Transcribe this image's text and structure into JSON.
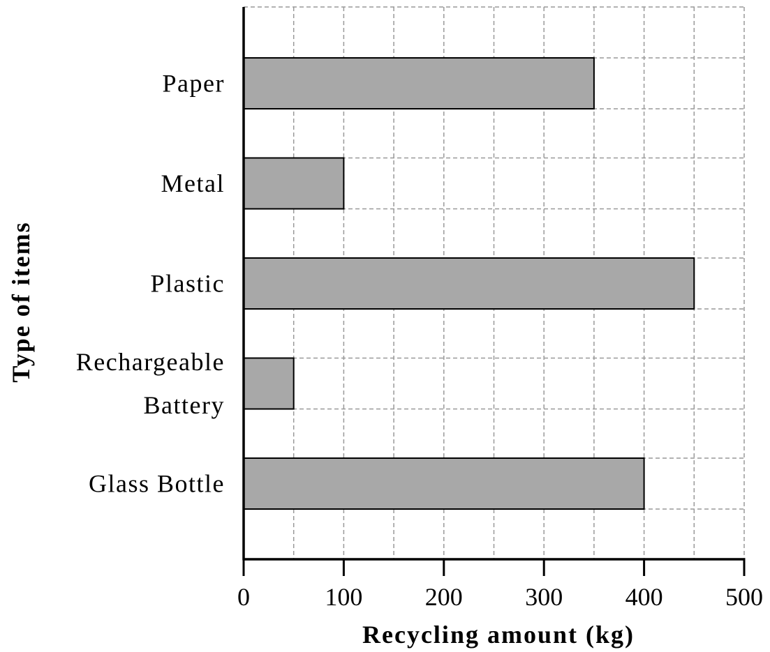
{
  "chart_data": {
    "type": "bar",
    "orientation": "horizontal",
    "categories": [
      [
        "Paper"
      ],
      [
        "Metal"
      ],
      [
        "Plastic"
      ],
      [
        "Rechargeable",
        "Battery"
      ],
      [
        "Glass Bottle"
      ]
    ],
    "values": [
      350,
      100,
      450,
      50,
      400
    ],
    "xlabel": "Recycling amount (kg)",
    "ylabel": "Type of items",
    "xlim": [
      0,
      500
    ],
    "xticks": [
      "0",
      "100",
      "200",
      "300",
      "400",
      "500"
    ],
    "grid": "dashed, every 50 kg on x and at bar edges on y",
    "colors": {
      "bar_fill": "#a8a8a8",
      "bar_stroke": "#000000",
      "grid": "#999999"
    }
  }
}
